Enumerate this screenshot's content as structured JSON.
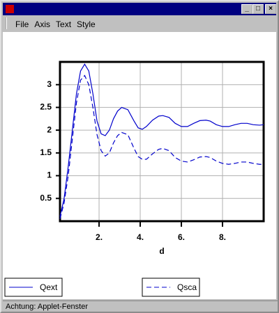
{
  "menu": [
    "File",
    "Axis",
    "Text",
    "Style"
  ],
  "status_bar": "Achtung: Applet-Fenster",
  "chart_data": {
    "type": "line",
    "x_label": "d",
    "x": [
      0.1,
      0.3,
      0.5,
      0.7,
      0.9,
      1.1,
      1.3,
      1.5,
      1.7,
      1.9,
      2.1,
      2.3,
      2.5,
      2.7,
      2.9,
      3.1,
      3.4,
      3.7,
      3.9,
      4.1,
      4.3,
      4.6,
      4.9,
      5.1,
      5.4,
      5.7,
      6.0,
      6.3,
      6.6,
      6.9,
      7.2,
      7.4,
      7.7,
      8.0,
      8.3,
      8.6,
      8.9,
      9.2,
      9.5,
      9.8,
      10.0
    ],
    "series": [
      {
        "name": "Qext",
        "color": "#0000cc",
        "line_style": "solid",
        "values": [
          0.1,
          0.5,
          1.2,
          2.0,
          2.8,
          3.3,
          3.45,
          3.3,
          2.8,
          2.2,
          1.92,
          1.88,
          2.0,
          2.25,
          2.42,
          2.5,
          2.45,
          2.2,
          2.05,
          2.02,
          2.08,
          2.22,
          2.31,
          2.32,
          2.28,
          2.15,
          2.08,
          2.08,
          2.15,
          2.21,
          2.22,
          2.2,
          2.12,
          2.08,
          2.08,
          2.12,
          2.15,
          2.15,
          2.12,
          2.11,
          2.12
        ]
      },
      {
        "name": "Qsca",
        "color": "#0000cc",
        "line_style": "dashed",
        "values": [
          0.05,
          0.4,
          1.0,
          1.8,
          2.6,
          3.1,
          3.2,
          3.0,
          2.5,
          1.9,
          1.55,
          1.43,
          1.5,
          1.72,
          1.88,
          1.95,
          1.9,
          1.6,
          1.42,
          1.36,
          1.36,
          1.48,
          1.58,
          1.6,
          1.55,
          1.4,
          1.32,
          1.3,
          1.35,
          1.41,
          1.42,
          1.4,
          1.32,
          1.27,
          1.25,
          1.27,
          1.3,
          1.3,
          1.27,
          1.25,
          1.25
        ]
      }
    ],
    "xlim": [
      0.1,
      10
    ],
    "ylim": [
      0,
      3.5
    ],
    "xticks": [
      {
        "value": 2,
        "label": "2."
      },
      {
        "value": 4,
        "label": "4."
      },
      {
        "value": 6,
        "label": "6."
      },
      {
        "value": 8,
        "label": "8."
      }
    ],
    "yticks": [
      0.5,
      1.0,
      1.5,
      2.0,
      2.5,
      3.0
    ],
    "grid": true
  }
}
